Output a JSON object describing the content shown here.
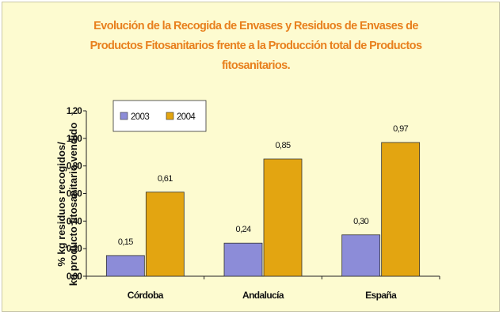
{
  "colors": {
    "background": "#fdfbd0",
    "title": "#e8801e",
    "series_2003": "#8c8cd8",
    "series_2004": "#e3a511"
  },
  "chart_data": {
    "type": "bar",
    "title_lines": [
      "Evolución de la Recogida de Envases y Residuos de Envases de",
      "Productos Fitosanitarios frente a la Producción total de Productos",
      "fitosanitarios."
    ],
    "ylabel_lines": [
      "% kg residuos recogidos/",
      "kg producto fitosanitario vendido"
    ],
    "xlabel": "",
    "categories": [
      "Córdoba",
      "Andalucía",
      "España"
    ],
    "series": [
      {
        "name": "2003",
        "values": [
          0.15,
          0.24,
          0.3
        ],
        "labels": [
          "0,15",
          "0,24",
          "0,30"
        ]
      },
      {
        "name": "2004",
        "values": [
          0.61,
          0.85,
          0.97
        ],
        "labels": [
          "0,61",
          "0,85",
          "0,97"
        ]
      }
    ],
    "ylim": [
      0,
      1.2
    ],
    "yticks": [
      0,
      0.2,
      0.4,
      0.6,
      0.8,
      1.0,
      1.2
    ],
    "ytick_labels": [
      "0,00",
      "0,20",
      "0,40",
      "0,60",
      "0,80",
      "1,00",
      "1,20"
    ],
    "grid": false,
    "legend_position": "top-left"
  }
}
